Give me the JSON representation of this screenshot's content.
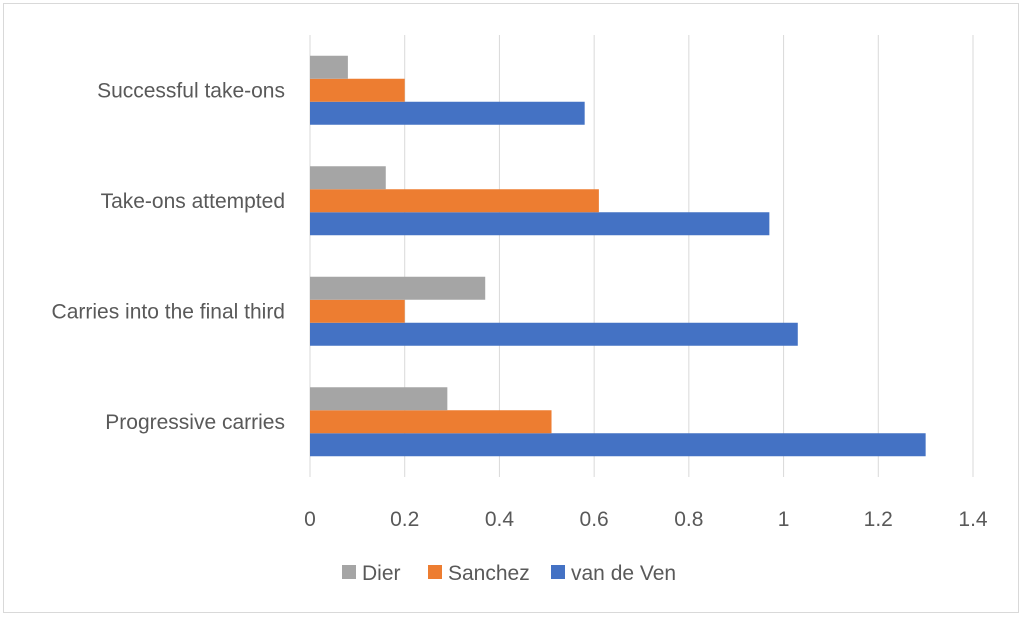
{
  "chart_data": {
    "type": "bar",
    "orientation": "horizontal",
    "title": "",
    "xlabel": "",
    "ylabel": "",
    "categories": [
      "Progressive carries",
      "Carries into the final third",
      "Take-ons attempted",
      "Successful take-ons"
    ],
    "series": [
      {
        "name": "van de Ven",
        "color": "#4472c4",
        "values": [
          1.3,
          1.03,
          0.97,
          0.58
        ]
      },
      {
        "name": "Sanchez",
        "color": "#ed7d31",
        "values": [
          0.51,
          0.2,
          0.61,
          0.2
        ]
      },
      {
        "name": "Dier",
        "color": "#a5a5a5",
        "values": [
          0.29,
          0.37,
          0.16,
          0.08
        ]
      }
    ],
    "xlim": [
      0,
      1.4
    ],
    "xticks": [
      "0",
      "0.2",
      "0.4",
      "0.6",
      "0.8",
      "1",
      "1.2",
      "1.4"
    ],
    "grid": true,
    "legend": {
      "position": "bottom",
      "order": [
        "Dier",
        "Sanchez",
        "van de Ven"
      ]
    }
  }
}
